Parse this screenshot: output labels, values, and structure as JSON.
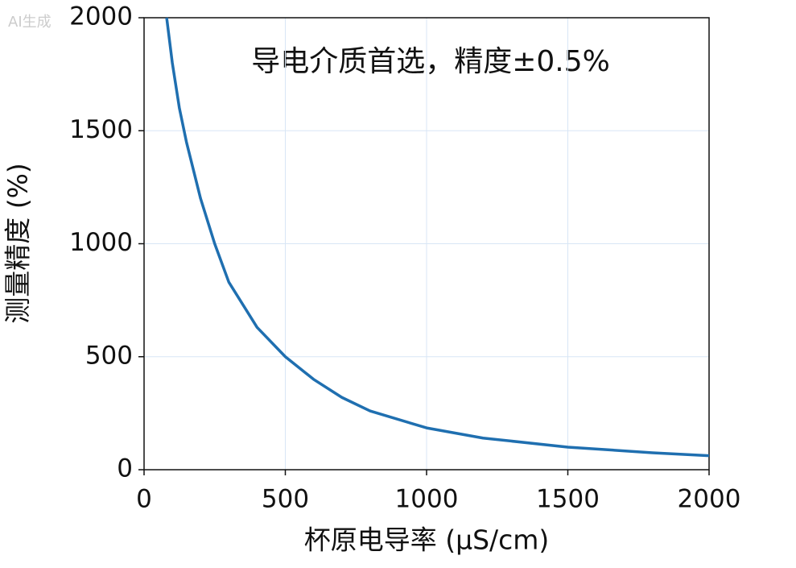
{
  "chart_data": {
    "type": "line",
    "watermark": "AI生成",
    "annotation": "导电介质首选，精度±0.5%",
    "xlabel": "杯原电导率 (μS/cm)",
    "ylabel": "测量精度 (%)",
    "x": [
      80,
      100,
      125,
      150,
      200,
      250,
      300,
      400,
      500,
      600,
      700,
      800,
      1000,
      1200,
      1500,
      1800,
      2000
    ],
    "series": [
      {
        "color": "#1f6fb0",
        "values": [
          2000,
          1800,
          1600,
          1450,
          1200,
          1000,
          830,
          630,
          500,
          400,
          320,
          260,
          185,
          140,
          100,
          75,
          62
        ]
      }
    ],
    "xlim": [
      0,
      2000
    ],
    "xticks": [
      0,
      500,
      1000,
      1500,
      2000
    ],
    "ylim": [
      0,
      2000
    ],
    "yticks": [
      0,
      500,
      1000,
      1500,
      2000
    ],
    "grid": true
  }
}
